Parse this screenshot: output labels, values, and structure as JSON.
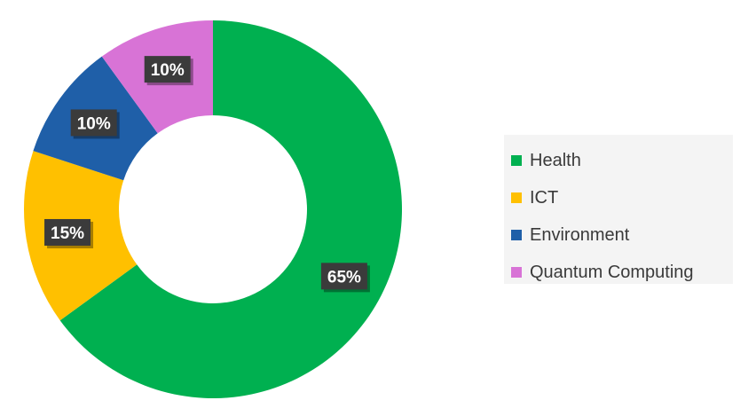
{
  "chart_data": {
    "type": "pie",
    "donut": true,
    "categories": [
      "Health",
      "ICT",
      "Environment",
      "Quantum Computing"
    ],
    "values": [
      65,
      15,
      10,
      10
    ],
    "value_labels": [
      "65%",
      "15%",
      "10%",
      "10%"
    ],
    "colors": [
      "#00b050",
      "#ffc000",
      "#1f5fa8",
      "#d873d6"
    ],
    "legend": {
      "position": "right",
      "entries": [
        {
          "label": "Health",
          "color": "#00b050"
        },
        {
          "label": "ICT",
          "color": "#ffc000"
        },
        {
          "label": "Environment",
          "color": "#1f5fa8"
        },
        {
          "label": "Quantum Computing",
          "color": "#d873d6"
        }
      ]
    },
    "title": "",
    "start_angle": "12 o'clock",
    "direction": "clockwise"
  }
}
